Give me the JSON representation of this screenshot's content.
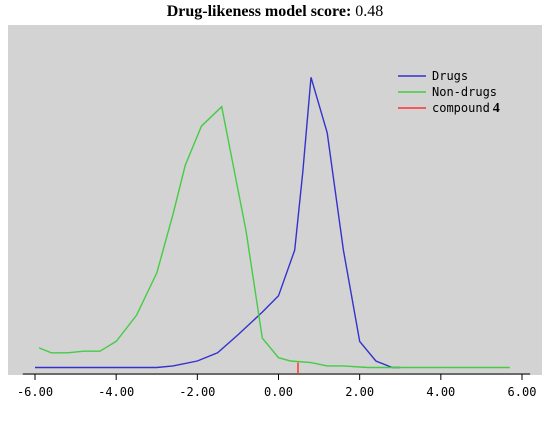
{
  "header": {
    "title_label": "Drug-likeness model score:",
    "title_value": "0.48"
  },
  "chart_data": {
    "type": "line",
    "title": "Drug-likeness model score: 0.48",
    "xlim": [
      -6.3,
      6.2
    ],
    "ylim": [
      0,
      1.0
    ],
    "grid": false,
    "background_color": "#d3d3d3",
    "x_ticks": [
      -6,
      -4,
      -2,
      0,
      2,
      4,
      6
    ],
    "x_tick_labels": [
      "-6.00",
      "-4.00",
      "-2.00",
      "0.00",
      "2.00",
      "4.00",
      "6.00"
    ],
    "legend_position": "top-right",
    "series": [
      {
        "name": "Drugs",
        "color": "#3333cc",
        "x": [
          -6.0,
          -5.0,
          -4.0,
          -3.0,
          -2.6,
          -2.0,
          -1.5,
          -1.0,
          -0.4,
          0.0,
          0.4,
          0.6,
          0.8,
          1.2,
          1.6,
          2.0,
          2.4,
          2.8,
          3.0
        ],
        "y": [
          0.02,
          0.02,
          0.02,
          0.02,
          0.025,
          0.04,
          0.065,
          0.12,
          0.19,
          0.24,
          0.38,
          0.62,
          0.91,
          0.74,
          0.38,
          0.1,
          0.04,
          0.02,
          0.02
        ]
      },
      {
        "name": "Non-drugs",
        "color": "#44cc44",
        "x": [
          -5.9,
          -5.6,
          -5.2,
          -4.8,
          -4.4,
          -4.0,
          -3.5,
          -3.0,
          -2.6,
          -2.3,
          -1.9,
          -1.4,
          -0.8,
          -0.4,
          0.0,
          0.3,
          0.8,
          1.2,
          1.6,
          2.2,
          3.0,
          4.0,
          5.0,
          5.7
        ],
        "y": [
          0.08,
          0.065,
          0.065,
          0.07,
          0.07,
          0.1,
          0.18,
          0.31,
          0.49,
          0.64,
          0.76,
          0.82,
          0.44,
          0.11,
          0.05,
          0.04,
          0.035,
          0.025,
          0.025,
          0.02,
          0.02,
          0.02,
          0.02,
          0.02
        ]
      },
      {
        "name": "compound 4",
        "color": "#ff3333",
        "marker_x": 0.48,
        "marker_height": 0.035
      }
    ]
  }
}
